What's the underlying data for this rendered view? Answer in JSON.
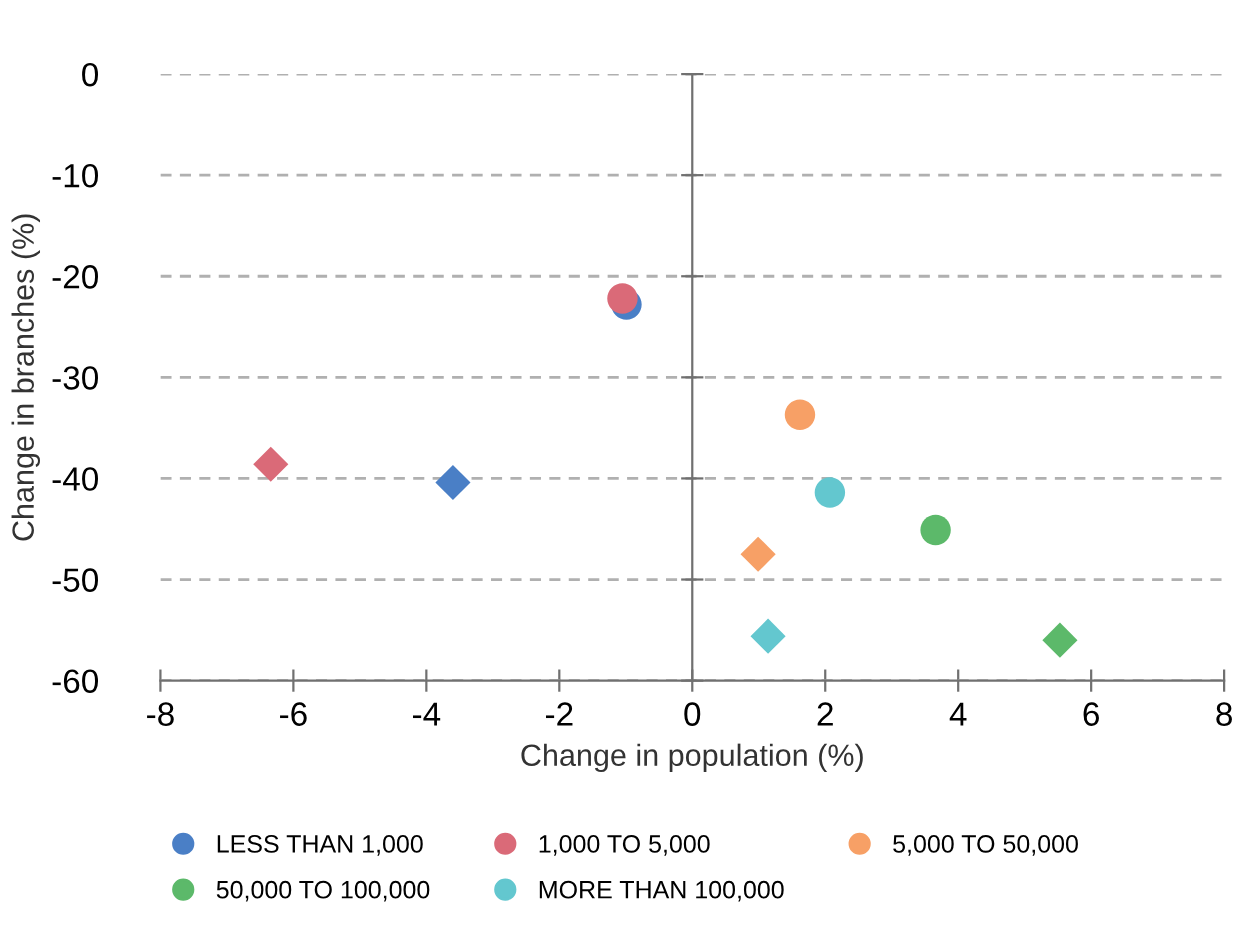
{
  "chart_data": {
    "type": "scatter",
    "xlabel": "Change in population (%)",
    "ylabel": "Change in branches (%)",
    "xlim": [
      -8,
      8
    ],
    "xticks": [
      -8,
      -6,
      -4,
      -2,
      0,
      2,
      4,
      6,
      8
    ],
    "ylim": [
      -60,
      0
    ],
    "yticks": [
      -60,
      -50,
      -40,
      -30,
      -20,
      -10,
      0
    ],
    "grid": "y",
    "legend": "bottom",
    "series": [
      {
        "name": "LESS THAN 1,000",
        "color": "#4a7fc6",
        "marker": "circle",
        "x": [
          -0.99
        ],
        "values": [
          -22.8
        ]
      },
      {
        "name": "1,000 TO 5,000",
        "color": "#da6a78",
        "marker": "circle",
        "x": [
          -1.05
        ],
        "values": [
          -22.2
        ]
      },
      {
        "name": "5,000 TO 50,000",
        "color": "#f7a066",
        "marker": "circle",
        "x": [
          1.62
        ],
        "values": [
          -33.7
        ]
      },
      {
        "name": "50,000 TO 100,000",
        "color": "#5cb96a",
        "marker": "circle",
        "x": [
          3.66
        ],
        "values": [
          -45.1
        ]
      },
      {
        "name": "MORE THAN 100,000",
        "color": "#63c7cf",
        "marker": "circle",
        "x": [
          2.07
        ],
        "values": [
          -41.4
        ]
      },
      {
        "color": "#4a7fc6",
        "marker": "diamond",
        "x": [
          -3.6
        ],
        "values": [
          -40.4
        ]
      },
      {
        "color": "#da6a78",
        "marker": "diamond",
        "x": [
          -6.34
        ],
        "values": [
          -38.6
        ]
      },
      {
        "color": "#f7a066",
        "marker": "diamond",
        "x": [
          0.99
        ],
        "values": [
          -47.5
        ]
      },
      {
        "color": "#5cb96a",
        "marker": "diamond",
        "x": [
          5.53
        ],
        "values": [
          -56.0
        ]
      },
      {
        "color": "#63c7cf",
        "marker": "diamond",
        "x": [
          1.14
        ],
        "values": [
          -55.6
        ]
      }
    ]
  }
}
